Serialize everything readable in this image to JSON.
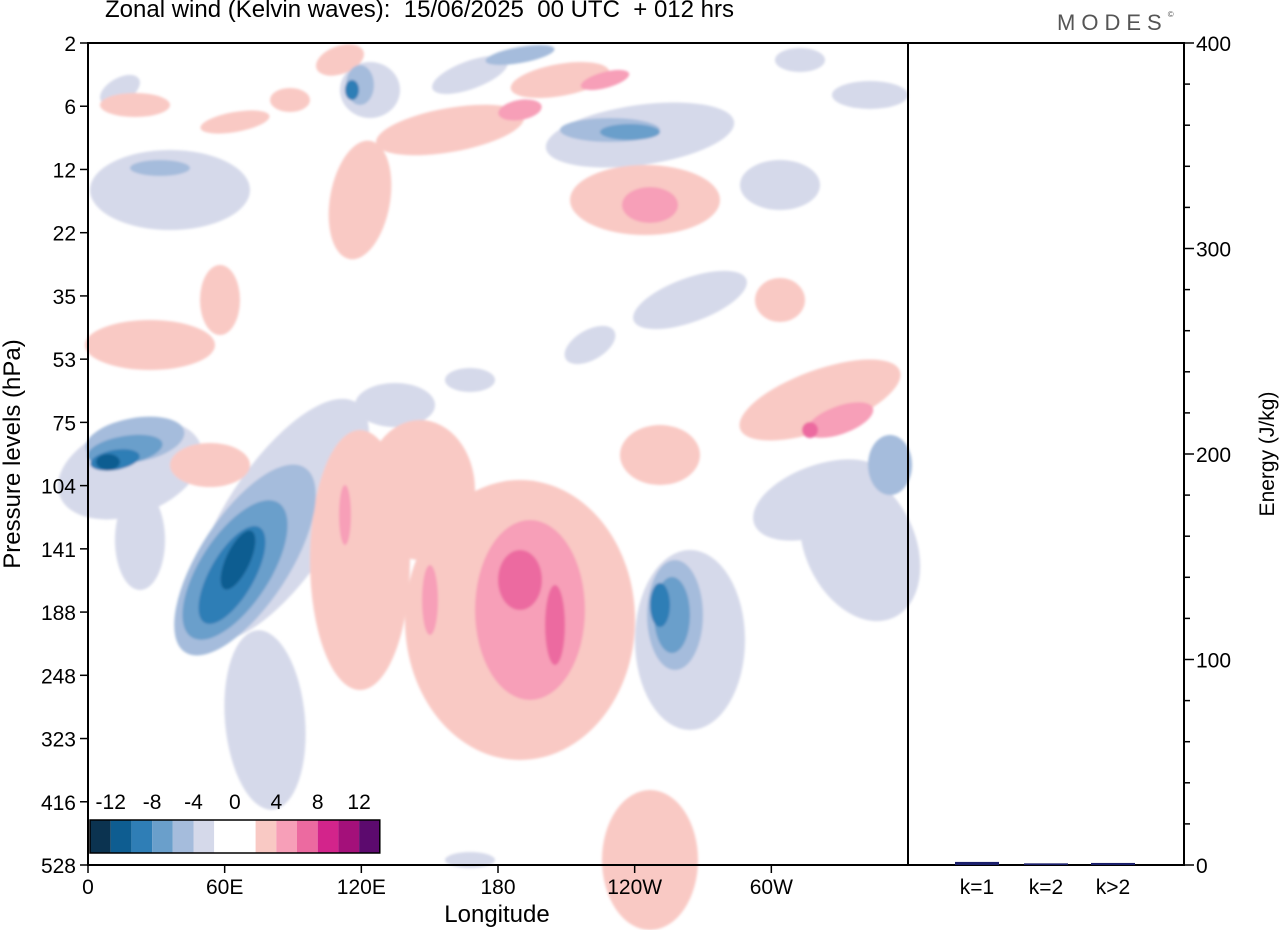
{
  "title": "Zonal wind (Kelvin waves):  15/06/2025  00 UTC  + 012 hrs",
  "brand": "MODES",
  "brand_mark": "©",
  "chart_data": [
    {
      "type": "heatmap",
      "title": "Zonal wind (Kelvin waves):  15/06/2025  00 UTC  + 012 hrs",
      "xlabel": "Longitude",
      "ylabel": "Pressure levels (hPa)",
      "x_ticks": [
        "0",
        "60E",
        "120E",
        "180",
        "120W",
        "60W"
      ],
      "x_tick_values": [
        0,
        60,
        120,
        180,
        240,
        300
      ],
      "xlim": [
        0,
        360
      ],
      "y_ticks": [
        "2",
        "6",
        "12",
        "22",
        "35",
        "53",
        "75",
        "104",
        "141",
        "188",
        "248",
        "323",
        "416",
        "528"
      ],
      "colorbar": {
        "labels": [
          "-12",
          "-8",
          "-4",
          "0",
          "4",
          "8",
          "12"
        ],
        "colors": [
          "#0b3350",
          "#0e5d91",
          "#2f7eb6",
          "#6a9fcb",
          "#a5bcdc",
          "#d5d9ea",
          "#ffffff",
          "#ffffff",
          "#f9c9c4",
          "#f79fb8",
          "#ec6aa0",
          "#d3248b",
          "#a4107a",
          "#5c0a6e"
        ]
      },
      "features": [
        {
          "lon": 7,
          "lev": 7.6,
          "value": -12
        },
        {
          "lon": 65,
          "lev": 8.7,
          "value": -12
        },
        {
          "lon": 190,
          "lev": 8.8,
          "value": 8
        },
        {
          "lon": 185,
          "lev": 8.4,
          "value": 8
        },
        {
          "lon": 250,
          "lev": 9.2,
          "value": -8
        },
        {
          "lon": 320,
          "lev": 6.2,
          "value": 8
        },
        {
          "lon": 358,
          "lev": 7.3,
          "value": -8
        },
        {
          "lon": 30,
          "lev": 0.2,
          "value": 4
        },
        {
          "lon": 120,
          "lev": 0.2,
          "value": 4
        },
        {
          "lon": 118,
          "lev": 0.8,
          "value": -8
        },
        {
          "lon": 205,
          "lev": 1.0,
          "value": 8
        },
        {
          "lon": 240,
          "lev": 0.5,
          "value": 8
        },
        {
          "lon": 245,
          "lev": 1.4,
          "value": -8
        },
        {
          "lon": 258,
          "lev": 2.5,
          "value": 8
        },
        {
          "lon": 240,
          "lev": 12.4,
          "value": 4
        }
      ]
    },
    {
      "type": "bar",
      "categories": [
        "k=1",
        "k=2",
        "k>2"
      ],
      "values": [
        1.5,
        0.8,
        1.0
      ],
      "ylabel": "Energy (J/kg)",
      "ylim": [
        0,
        400
      ],
      "y_ticks": [
        0,
        100,
        200,
        300,
        400
      ]
    }
  ],
  "colors": {
    "bar": "#1a1f6b",
    "axis": "#000000"
  }
}
